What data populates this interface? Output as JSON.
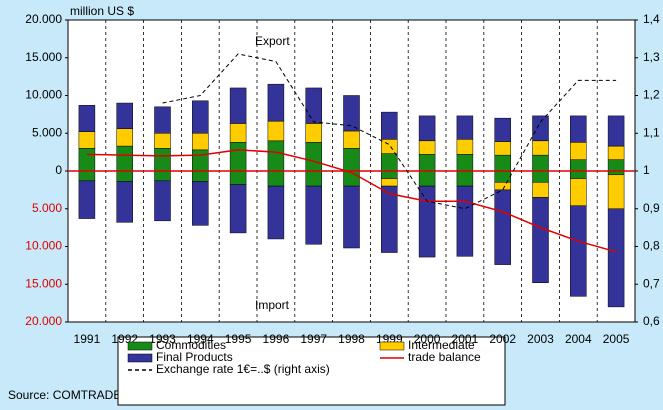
{
  "chart_data": {
    "type": "bar",
    "y_axis_label": "million US $",
    "annotations": [
      "Export",
      "Import"
    ],
    "source": "Source: COMTRADE",
    "categories": [
      "1991",
      "1992",
      "1993",
      "1994",
      "1995",
      "1996",
      "1997",
      "1998",
      "1999",
      "2000",
      "2001",
      "2002",
      "2003",
      "2004",
      "2005"
    ],
    "series": [
      {
        "name": "Commodities",
        "color": "#178a17",
        "export": [
          3000,
          3300,
          3000,
          2800,
          3800,
          4000,
          3800,
          3000,
          2300,
          2200,
          2200,
          2100,
          2100,
          1500,
          1500
        ],
        "import": [
          -1300,
          -1400,
          -1300,
          -1400,
          -1800,
          -2000,
          -2000,
          -2000,
          -1000,
          -2000,
          -2000,
          -1500,
          -1500,
          -1000,
          -500
        ]
      },
      {
        "name": "Intermediate",
        "color": "#ffcc00",
        "export": [
          2200,
          2300,
          2000,
          2200,
          2500,
          2600,
          2500,
          2300,
          1900,
          1800,
          2000,
          1800,
          1900,
          2300,
          1800
        ],
        "import": [
          0,
          0,
          0,
          0,
          0,
          0,
          0,
          0,
          -1000,
          0,
          0,
          -1000,
          -2000,
          -3600,
          -4500
        ]
      },
      {
        "name": "Final Products",
        "color": "#343399",
        "export": [
          3500,
          3400,
          3500,
          4300,
          4700,
          4900,
          4700,
          4700,
          3600,
          3300,
          3100,
          3100,
          3300,
          3500,
          4000
        ],
        "import": [
          -5000,
          -5400,
          -5300,
          -5800,
          -6400,
          -7000,
          -7700,
          -8200,
          -8800,
          -9400,
          -9300,
          -9900,
          -11300,
          -12000,
          -13000
        ]
      }
    ],
    "lines": [
      {
        "name": "trade balance",
        "color": "#e00000",
        "style": "solid",
        "values": [
          2200,
          2100,
          2000,
          2100,
          2800,
          2500,
          1300,
          -200,
          -3000,
          -4000,
          -4000,
          -5400,
          -7500,
          -9300,
          -10700
        ]
      },
      {
        "name": "Exchange rate 1€=..$ (right axis)",
        "color": "#000000",
        "style": "dashed",
        "axis": "y2",
        "values": [
          null,
          null,
          1.18,
          1.2,
          1.31,
          1.29,
          1.13,
          1.12,
          1.07,
          0.92,
          0.9,
          0.95,
          1.13,
          1.24,
          1.24
        ]
      }
    ],
    "ylim": [
      -20000,
      20000
    ],
    "yticks": [
      {
        "value": 20000,
        "label": "20.000"
      },
      {
        "value": 15000,
        "label": "15.000"
      },
      {
        "value": 10000,
        "label": "10.000"
      },
      {
        "value": 5000,
        "label": "5.000"
      },
      0,
      {
        "value": -5000,
        "label": "5.000"
      },
      {
        "value": -10000,
        "label": "10.000"
      },
      {
        "value": -15000,
        "label": "15.000"
      },
      {
        "value": -20000,
        "label": "20.000"
      }
    ],
    "negative_tick_color": "#e00000",
    "y2lim": [
      0.6,
      1.4
    ],
    "y2ticks": [
      {
        "value": 1.4,
        "label": "1,4"
      },
      {
        "value": 1.3,
        "label": "1,3"
      },
      {
        "value": 1.2,
        "label": "1,2"
      },
      {
        "value": 1.1,
        "label": "1,1"
      },
      1,
      {
        "value": 0.9,
        "label": "0,9"
      },
      {
        "value": 0.8,
        "label": "0,8"
      },
      {
        "value": 0.7,
        "label": "0,7"
      },
      {
        "value": 0.6,
        "label": "0,6"
      }
    ],
    "grid": true
  }
}
